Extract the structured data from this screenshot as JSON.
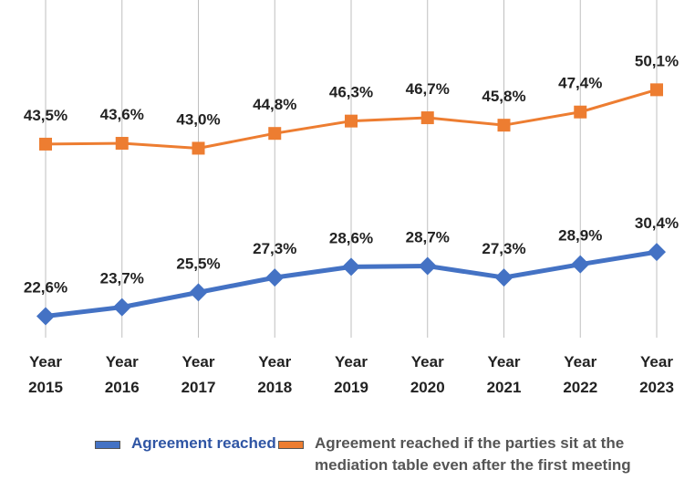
{
  "chart_data": {
    "type": "line",
    "categories": [
      "Year 2015",
      "Year 2016",
      "Year 2017",
      "Year 2018",
      "Year 2019",
      "Year 2020",
      "Year 2021",
      "Year 2022",
      "Year 2023"
    ],
    "series": [
      {
        "name": "Agreement reached",
        "color": "#4472c4",
        "marker": "diamond",
        "values": [
          22.6,
          23.7,
          25.5,
          27.3,
          28.6,
          28.7,
          27.3,
          28.9,
          30.4
        ],
        "value_labels": [
          "22,6%",
          "23,7%",
          "25,5%",
          "27,3%",
          "28,6%",
          "28,7%",
          "27,3%",
          "28,9%",
          "30,4%"
        ]
      },
      {
        "name": "Agreement reached if the parties sit at the mediation table even after the first meeting",
        "color": "#ed7d31",
        "marker": "square",
        "values": [
          43.5,
          43.6,
          43.0,
          44.8,
          46.3,
          46.7,
          45.8,
          47.4,
          50.1
        ],
        "value_labels": [
          "43,5%",
          "43,6%",
          "43,0%",
          "44,8%",
          "46,3%",
          "46,7%",
          "45,8%",
          "47,4%",
          "50,1%"
        ]
      }
    ],
    "ylim": [
      20,
      61
    ],
    "grid": true,
    "legend": "bottom"
  }
}
